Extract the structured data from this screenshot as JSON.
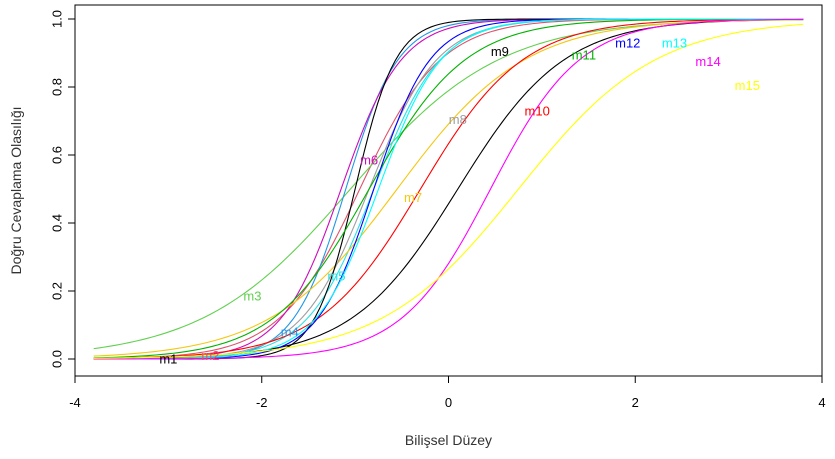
{
  "chart_data": {
    "type": "line",
    "title": "",
    "xlabel": "Bilişsel Düzey",
    "ylabel": "Doğru Cevaplama Olasılığı",
    "xlim": [
      -4,
      4
    ],
    "ylim": [
      0,
      1
    ],
    "x_range": [
      -3.8,
      3.8
    ],
    "xticks": [
      -4,
      -2,
      0,
      2,
      4
    ],
    "yticks": [
      0.0,
      0.2,
      0.4,
      0.6,
      0.8,
      1.0
    ],
    "xtick_labels": [
      "-4",
      "-2",
      "0",
      "2",
      "4"
    ],
    "ytick_labels": [
      "0.0",
      "0.2",
      "0.4",
      "0.6",
      "0.8",
      "1.0"
    ],
    "grid": false,
    "legend": "none",
    "model": "logistic",
    "series": [
      {
        "name": "m1",
        "color": "#000000",
        "a": 1.03,
        "b": 0.1,
        "label_at": [
          -3.0,
          0.0
        ]
      },
      {
        "name": "m2",
        "color": "#DF536B",
        "a": 1.36,
        "b": -0.95,
        "label_at": [
          -2.55,
          0.01
        ]
      },
      {
        "name": "m3",
        "color": "#61D04F",
        "a": 0.74,
        "b": -1.05,
        "label_at": [
          -2.1,
          0.185
        ]
      },
      {
        "name": "m4",
        "color": "#2297E6",
        "a": 2.1,
        "b": -1.1,
        "label_at": [
          -1.7,
          0.08
        ]
      },
      {
        "name": "m5",
        "color": "#28E2E5",
        "a": 1.65,
        "b": -0.8,
        "label_at": [
          -1.2,
          0.245
        ]
      },
      {
        "name": "m6",
        "color": "#CD0BBC",
        "a": 1.82,
        "b": -1.15,
        "label_at": [
          -0.85,
          0.585
        ]
      },
      {
        "name": "m7",
        "color": "#F5C710",
        "a": 0.86,
        "b": -0.55,
        "label_at": [
          -0.38,
          0.475
        ]
      },
      {
        "name": "m8",
        "color": "#9E9E9E",
        "a": 1.62,
        "b": -0.85,
        "label_at": [
          0.1,
          0.705
        ]
      },
      {
        "name": "m9",
        "color": "#000000",
        "a": 2.7,
        "b": -1.0,
        "label_at": [
          0.55,
          0.905
        ]
      },
      {
        "name": "m10",
        "color": "#FF0000",
        "a": 1.07,
        "b": -0.3,
        "label_at": [
          0.95,
          0.73
        ]
      },
      {
        "name": "m11",
        "color": "#00B200",
        "a": 1.14,
        "b": -0.85,
        "label_at": [
          1.45,
          0.895
        ]
      },
      {
        "name": "m12",
        "color": "#0000FF",
        "a": 1.95,
        "b": -0.8,
        "label_at": [
          1.92,
          0.93
        ]
      },
      {
        "name": "m13",
        "color": "#00FFFF",
        "a": 1.75,
        "b": -0.75,
        "label_at": [
          2.42,
          0.93
        ]
      },
      {
        "name": "m14",
        "color": "#FF00FF",
        "a": 1.23,
        "b": 0.45,
        "label_at": [
          2.78,
          0.875
        ]
      },
      {
        "name": "m15",
        "color": "#FFFF00",
        "a": 0.8,
        "b": 0.75,
        "label_at": [
          3.2,
          0.805
        ]
      }
    ]
  }
}
